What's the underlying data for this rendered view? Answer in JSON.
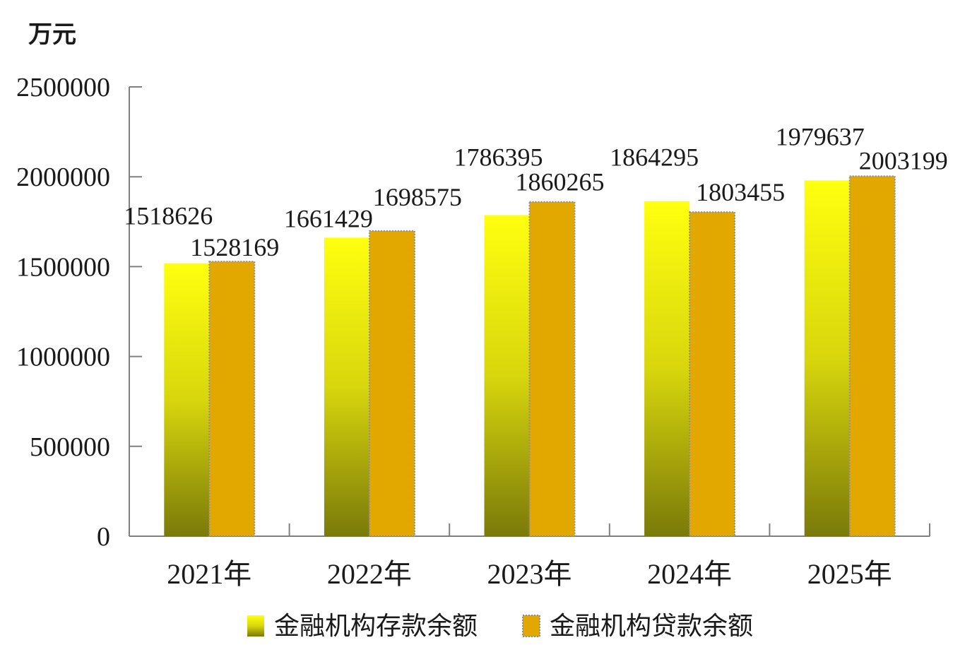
{
  "chart_data": {
    "type": "bar",
    "unit": "万元",
    "categories": [
      "2021年",
      "2022年",
      "2023年",
      "2024年",
      "2025年"
    ],
    "series": [
      {
        "name": "金融机构存款余额",
        "values": [
          1518626,
          1661429,
          1786395,
          1864295,
          1979637
        ]
      },
      {
        "name": "金融机构贷款余额",
        "values": [
          1528169,
          1698575,
          1860265,
          1803455,
          2003199
        ]
      }
    ],
    "ylim": [
      0,
      2500000
    ],
    "yticks": [
      "0",
      "500000",
      "1000000",
      "1500000",
      "2000000",
      "2500000"
    ],
    "grid": false,
    "legend_position": "bottom",
    "colors": {
      "deposit_top": "#FFFF0F",
      "deposit_mid": "#D8D60C",
      "deposit_bottom": "#7A7A0A",
      "loan": "#E3A800",
      "loan_border": "#8C8CA0"
    }
  }
}
